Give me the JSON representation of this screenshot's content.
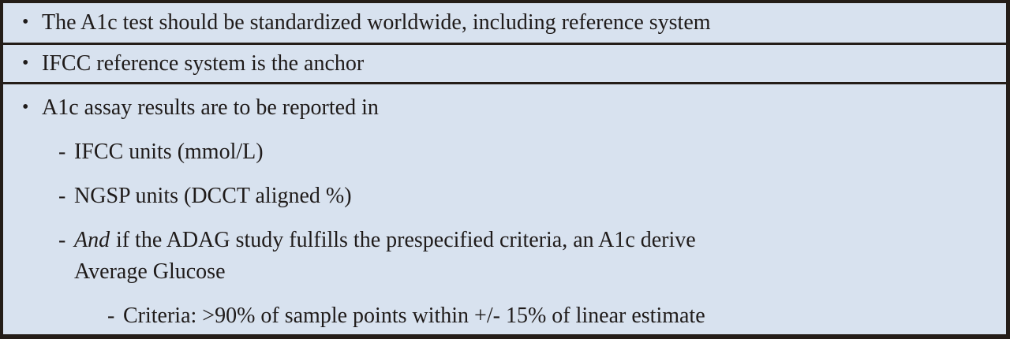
{
  "slide": {
    "background_color": "#d8e2ef",
    "border_color": "#241d18",
    "text_color": "#1f1b1a",
    "bullet_glyph": "•",
    "dash_glyph": "-",
    "rows": [
      {
        "text": "The A1c test should be standardized worldwide, including reference system"
      },
      {
        "text": "IFCC reference system is the anchor"
      },
      {
        "text": "A1c assay results are to be reported in"
      }
    ],
    "sub_items": [
      {
        "dash": "-",
        "text": "IFCC units (mmol/L)"
      },
      {
        "dash": "-",
        "text": "NGSP units (DCCT aligned %)"
      },
      {
        "dash": "-",
        "italic_word": "And",
        "rest": "if the ADAG study fulfills the prespecified criteria, an A1c derive",
        "line2": "Average Glucose"
      },
      {
        "dash": "-",
        "text": "Criteria: >90% of sample points within +/- 15% of linear estimate"
      }
    ]
  }
}
